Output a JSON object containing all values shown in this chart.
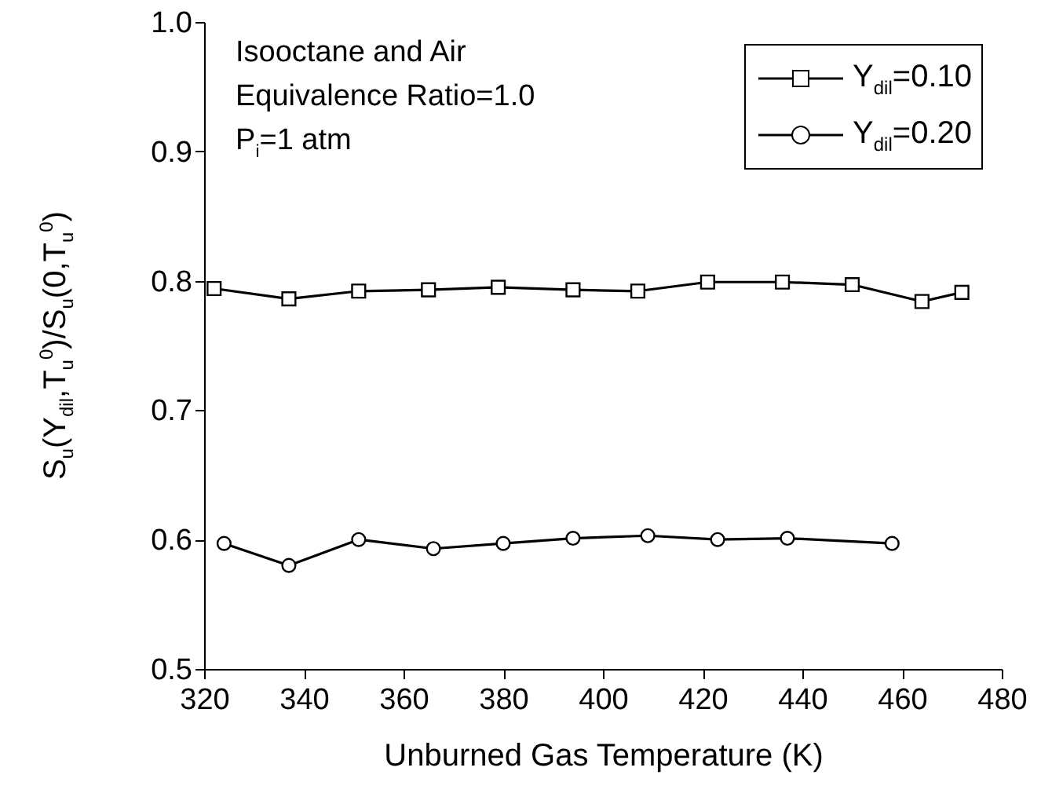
{
  "chart_data": {
    "type": "line",
    "xlabel": "Unburned Gas Temperature (K)",
    "ylabel": "S$_{u}$(Y$_{dil}$,T$_{u}$$^{0}$)/S$_{u}$(0,T$_{u}$$^{0}$)",
    "annotations": [
      "Isooctane and Air",
      "Equivalence Ratio=1.0",
      "P$_{i}$=1 atm"
    ],
    "series": [
      {
        "name": "Y$_{dil}$=0.10",
        "color": "#000000",
        "marker": "square",
        "x": [
          322,
          337,
          351,
          365,
          379,
          394,
          407,
          421,
          436,
          450,
          464,
          472
        ],
        "values": [
          0.794,
          0.786,
          0.792,
          0.793,
          0.795,
          0.793,
          0.792,
          0.799,
          0.799,
          0.797,
          0.784,
          0.791
        ]
      },
      {
        "name": "Y$_{dil}$=0.20",
        "color": "#000000",
        "marker": "circle",
        "x": [
          324,
          337,
          351,
          366,
          380,
          394,
          409,
          423,
          437,
          458
        ],
        "values": [
          0.597,
          0.58,
          0.6,
          0.593,
          0.597,
          0.601,
          0.603,
          0.6,
          0.601,
          0.597
        ]
      }
    ],
    "xlim": [
      320,
      480
    ],
    "xticks": [
      320,
      340,
      360,
      380,
      400,
      420,
      440,
      460,
      480
    ],
    "ylim": [
      0.5,
      1.0
    ],
    "yticks": [
      {
        "value": 0.5,
        "label": "0.5"
      },
      {
        "value": 0.6,
        "label": "0.6"
      },
      {
        "value": 0.7,
        "label": "0.7"
      },
      {
        "value": 0.8,
        "label": "0.8"
      },
      {
        "value": 0.9,
        "label": "0.9"
      },
      {
        "value": 1.0,
        "label": "1.0"
      }
    ],
    "grid": false,
    "legend": "top right",
    "line_style": "solid"
  }
}
